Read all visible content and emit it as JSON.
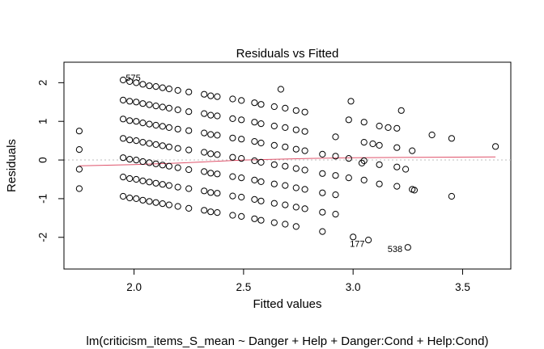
{
  "chart_data": {
    "type": "scatter",
    "title": "Residuals vs Fitted",
    "xlabel": "Fitted values",
    "ylabel": "Residuals",
    "subtitle": "lm(criticism_items_S_mean ~ Danger + Help + Danger:Cond + Help:Cond)",
    "xlim": [
      1.68,
      3.72
    ],
    "ylim": [
      -2.82,
      2.53
    ],
    "x_ticks": [
      2.0,
      2.5,
      3.0,
      3.5
    ],
    "x_tick_labels": [
      "2.0",
      "2.5",
      "3.0",
      "3.5"
    ],
    "y_ticks": [
      -2,
      -1,
      0,
      1,
      2
    ],
    "y_tick_labels": [
      "-2",
      "-1",
      "0",
      "1",
      "2"
    ],
    "zero_line": true,
    "grid": false,
    "point_color": "#000000",
    "smooth_color": "#DF536B",
    "zero_line_color": "#BEBEBE",
    "smooth": {
      "x": [
        1.75,
        2.0,
        2.2,
        2.5,
        2.8,
        3.0,
        3.3,
        3.65
      ],
      "y": [
        -0.15,
        -0.12,
        -0.08,
        0.0,
        0.04,
        0.06,
        0.07,
        0.08
      ]
    },
    "outlier_labels": [
      {
        "label": "575",
        "x": 1.94,
        "y": 2.07
      },
      {
        "label": "177",
        "x": 3.0,
        "y": -1.99
      },
      {
        "label": "538",
        "x": 3.25,
        "y": -2.26
      }
    ],
    "columns": [
      {
        "x": 1.75,
        "y": [
          0.75,
          0.27,
          -0.24,
          -0.74
        ]
      },
      {
        "x": 1.95,
        "y": [
          2.07,
          1.55,
          1.06,
          0.56,
          0.06,
          -0.44,
          -0.94
        ]
      },
      {
        "x": 1.98,
        "y": [
          2.03,
          1.52,
          1.02,
          0.52,
          0.02,
          -0.48,
          -0.98
        ]
      },
      {
        "x": 2.01,
        "y": [
          2.0,
          1.5,
          1.0,
          0.5,
          0.0,
          -0.5,
          -1.0
        ]
      },
      {
        "x": 2.04,
        "y": [
          1.96,
          1.46,
          0.96,
          0.46,
          -0.04,
          -0.54,
          -1.04
        ]
      },
      {
        "x": 2.07,
        "y": [
          1.92,
          1.43,
          0.93,
          0.43,
          -0.07,
          -0.57,
          -1.07
        ]
      },
      {
        "x": 2.1,
        "y": [
          1.9,
          1.4,
          0.9,
          0.4,
          -0.1,
          -0.6,
          -1.1
        ]
      },
      {
        "x": 2.13,
        "y": [
          1.87,
          1.37,
          0.87,
          0.37,
          -0.13,
          -0.63,
          -1.13
        ]
      },
      {
        "x": 2.16,
        "y": [
          1.84,
          1.34,
          0.84,
          0.34,
          -0.16,
          -0.66,
          -1.16
        ]
      },
      {
        "x": 2.2,
        "y": [
          1.8,
          1.3,
          0.8,
          0.3,
          -0.2,
          -0.7,
          -1.2
        ]
      },
      {
        "x": 2.25,
        "y": [
          1.76,
          1.25,
          0.76,
          0.26,
          -0.25,
          -0.74,
          -1.25
        ]
      },
      {
        "x": 2.32,
        "y": [
          1.7,
          1.2,
          0.7,
          0.2,
          -0.3,
          -0.8,
          -1.3
        ]
      },
      {
        "x": 2.35,
        "y": [
          1.66,
          1.16,
          0.66,
          0.16,
          -0.34,
          -0.84,
          -1.34
        ]
      },
      {
        "x": 2.38,
        "y": [
          1.64,
          1.14,
          0.64,
          0.14,
          -0.36,
          -0.86,
          -1.36
        ]
      },
      {
        "x": 2.45,
        "y": [
          1.58,
          1.07,
          0.57,
          0.07,
          -0.43,
          -0.93,
          -1.43
        ]
      },
      {
        "x": 2.49,
        "y": [
          1.54,
          1.04,
          0.54,
          0.04,
          -0.46,
          -0.96,
          -1.46
        ]
      },
      {
        "x": 2.55,
        "y": [
          1.48,
          0.98,
          0.48,
          -0.02,
          -0.52,
          -1.02,
          -1.52
        ]
      },
      {
        "x": 2.58,
        "y": [
          1.44,
          0.94,
          0.44,
          -0.06,
          -0.56,
          -1.06,
          -1.56
        ]
      },
      {
        "x": 2.64,
        "y": [
          1.38,
          0.88,
          0.38,
          -0.12,
          -0.62,
          -1.12,
          -1.62
        ]
      },
      {
        "x": 2.69,
        "y": [
          1.34,
          0.84,
          0.34,
          -0.16,
          -0.66,
          -1.16,
          -1.66
        ]
      },
      {
        "x": 2.74,
        "y": [
          1.28,
          0.78,
          0.28,
          -0.22,
          -0.72,
          -1.22,
          -1.72
        ]
      },
      {
        "x": 2.78,
        "y": [
          1.24,
          0.74,
          0.24,
          -0.26,
          -0.76,
          -1.26
        ]
      },
      {
        "x": 2.86,
        "y": [
          0.15,
          -0.35,
          -0.85,
          -1.35,
          -1.85
        ]
      },
      {
        "x": 2.92,
        "y": [
          0.6,
          0.1,
          -0.4,
          -0.9,
          -1.4
        ]
      },
      {
        "x": 2.98,
        "y": [
          1.04,
          0.04,
          -0.46
        ]
      },
      {
        "x": 3.05,
        "y": [
          0.98,
          0.46,
          -0.02,
          -0.52
        ]
      },
      {
        "x": 3.12,
        "y": [
          0.88,
          0.38,
          -0.12,
          -0.62
        ]
      },
      {
        "x": 3.2,
        "y": [
          0.82,
          0.32,
          -0.18,
          -0.68
        ]
      },
      {
        "x": 3.27,
        "y": [
          0.24,
          -0.76
        ]
      }
    ],
    "extra_points": [
      {
        "x": 2.67,
        "y": 1.83
      },
      {
        "x": 2.99,
        "y": 1.52
      },
      {
        "x": 3.0,
        "y": -1.99
      },
      {
        "x": 3.07,
        "y": -2.07
      },
      {
        "x": 3.25,
        "y": -2.26
      },
      {
        "x": 3.22,
        "y": 1.28
      },
      {
        "x": 3.36,
        "y": 0.65
      },
      {
        "x": 3.45,
        "y": 0.56
      },
      {
        "x": 3.45,
        "y": -0.94
      },
      {
        "x": 3.65,
        "y": 0.35
      },
      {
        "x": 3.24,
        "y": -0.24
      },
      {
        "x": 3.28,
        "y": -0.78
      },
      {
        "x": 3.16,
        "y": 0.84
      },
      {
        "x": 3.09,
        "y": 0.42
      },
      {
        "x": 3.04,
        "y": -0.08
      }
    ]
  }
}
